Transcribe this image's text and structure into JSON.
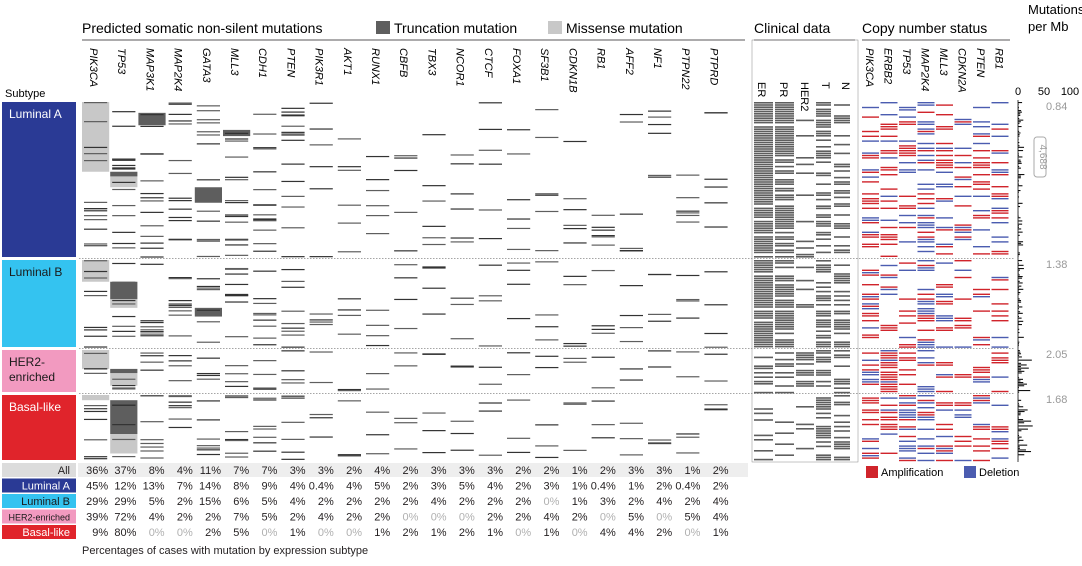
{
  "headers": {
    "mutations_title": "Predicted somatic non-silent mutations",
    "truncation_label": "Truncation mutation",
    "missense_label": "Missense mutation",
    "clinical_title": "Clinical data",
    "cn_title": "Copy number status",
    "mb_title_1": "Mutations",
    "mb_title_2": "per Mb",
    "subtype_col": "Subtype"
  },
  "colors": {
    "truncation": "#5e5e5e",
    "missense": "#c8c8c8",
    "amplification": "#d0242b",
    "deletion": "#4b5cb0",
    "luminal_a": "#2a3a95",
    "luminal_b": "#34c3f0",
    "her2": "#f29ac0",
    "basal": "#e0242b"
  },
  "chart_data": {
    "type": "heatmap",
    "genes": [
      "PIK3CA",
      "TP53",
      "MAP3K1",
      "MAP2K4",
      "GATA3",
      "MLL3",
      "CDH1",
      "PTEN",
      "PIK3R1",
      "AKT1",
      "RUNX1",
      "CBFB",
      "TBX3",
      "NCOR1",
      "CTCF",
      "FOXA1",
      "SF3B1",
      "CDKN1B",
      "RB1",
      "AFF2",
      "NF1",
      "PTPN22",
      "PTPRD"
    ],
    "clinical_labels": [
      "ER",
      "PR",
      "HER2",
      "T",
      "N"
    ],
    "cn_genes": [
      "PIK3CA",
      "ERBB2",
      "TP53",
      "MAP2K4",
      "MLL3",
      "CDKN2A",
      "PTEN",
      "RB1"
    ],
    "mb_axis": {
      "ticks": [
        "0",
        "50",
        "100"
      ],
      "range": [
        0,
        100
      ]
    },
    "subtypes": [
      {
        "name": "Luminal A",
        "median_mb": "0.84",
        "annotation": "4,688"
      },
      {
        "name": "Luminal B",
        "median_mb": "1.38"
      },
      {
        "name": "HER2-\nenriched",
        "median_mb": "2.05"
      },
      {
        "name": "Basal-like",
        "median_mb": "1.68"
      }
    ],
    "percent_table": {
      "rows": [
        {
          "label": "All",
          "values": [
            "36%",
            "37%",
            "8%",
            "4%",
            "11%",
            "7%",
            "7%",
            "3%",
            "3%",
            "2%",
            "4%",
            "2%",
            "3%",
            "3%",
            "3%",
            "2%",
            "2%",
            "1%",
            "2%",
            "3%",
            "3%",
            "1%",
            "2%"
          ]
        },
        {
          "label": "Luminal A",
          "values": [
            "45%",
            "12%",
            "13%",
            "7%",
            "14%",
            "8%",
            "9%",
            "4%",
            "0.4%",
            "4%",
            "5%",
            "2%",
            "3%",
            "5%",
            "4%",
            "2%",
            "3%",
            "1%",
            "0.4%",
            "1%",
            "2%",
            "0.4%",
            "2%"
          ]
        },
        {
          "label": "Luminal B",
          "values": [
            "29%",
            "29%",
            "5%",
            "2%",
            "15%",
            "6%",
            "5%",
            "4%",
            "2%",
            "2%",
            "2%",
            "2%",
            "4%",
            "2%",
            "2%",
            "2%",
            "0%",
            "1%",
            "3%",
            "2%",
            "4%",
            "2%",
            "4%"
          ]
        },
        {
          "label": "HER2-enriched",
          "values": [
            "39%",
            "72%",
            "4%",
            "2%",
            "2%",
            "7%",
            "5%",
            "2%",
            "4%",
            "2%",
            "2%",
            "0%",
            "0%",
            "0%",
            "2%",
            "2%",
            "4%",
            "2%",
            "0%",
            "5%",
            "0%",
            "5%",
            "4%"
          ]
        },
        {
          "label": "Basal-like",
          "values": [
            "9%",
            "80%",
            "0%",
            "0%",
            "2%",
            "5%",
            "0%",
            "1%",
            "0%",
            "0%",
            "1%",
            "2%",
            "1%",
            "2%",
            "1%",
            "0%",
            "1%",
            "0%",
            "4%",
            "4%",
            "2%",
            "0%",
            "1%"
          ]
        }
      ]
    }
  },
  "legend": {
    "amplification": "Amplification",
    "deletion": "Deletion"
  },
  "footer": "Percentages of cases with mutation by expression subtype"
}
